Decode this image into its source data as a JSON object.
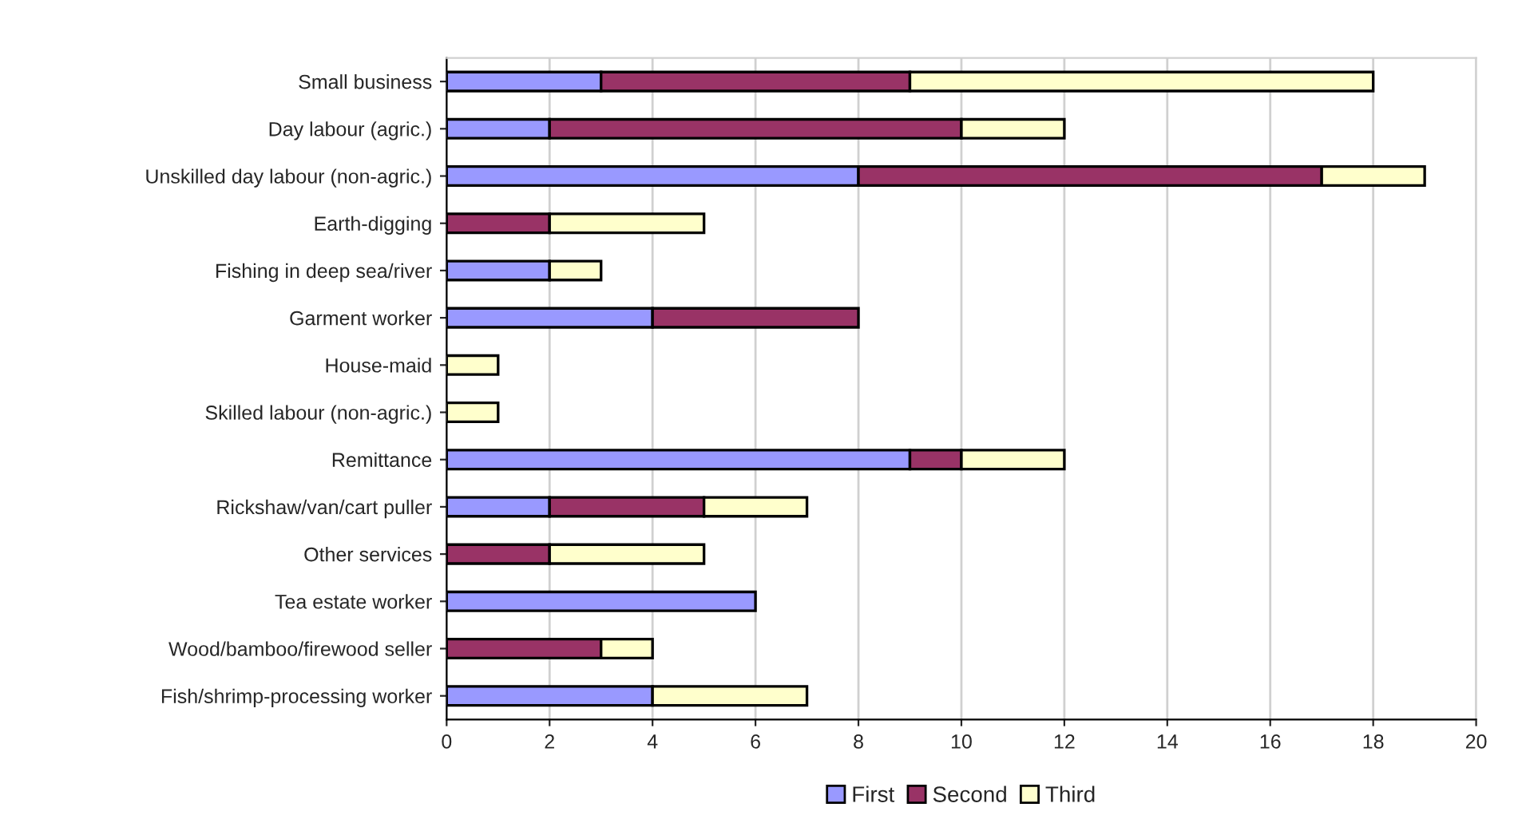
{
  "chart_data": {
    "type": "bar",
    "orientation": "horizontal",
    "stacked": true,
    "categories": [
      "Small business",
      "Day labour (agric.)",
      "Unskilled day labour (non-agric.)",
      "Earth-digging",
      "Fishing in deep sea/river",
      "Garment worker",
      "House-maid",
      "Skilled labour (non-agric.)",
      "Remittance",
      "Rickshaw/van/cart puller",
      "Other services",
      "Tea estate worker",
      "Wood/bamboo/firewood seller",
      "Fish/shrimp-processing worker"
    ],
    "series": [
      {
        "name": "First",
        "color": "#9999ff",
        "values": [
          3,
          2,
          8,
          null,
          2,
          4,
          null,
          null,
          9,
          2,
          null,
          6,
          null,
          4
        ]
      },
      {
        "name": "Second",
        "color": "#993366",
        "values": [
          6,
          8,
          9,
          2,
          null,
          4,
          null,
          null,
          1,
          3,
          2,
          null,
          3,
          null
        ]
      },
      {
        "name": "Third",
        "color": "#ffffcc",
        "values": [
          9,
          2,
          2,
          3,
          1,
          null,
          1,
          1,
          2,
          2,
          3,
          null,
          1,
          3
        ]
      }
    ],
    "xlim": [
      0,
      20
    ],
    "xticks": [
      0,
      2,
      4,
      6,
      8,
      10,
      12,
      14,
      16,
      18,
      20
    ],
    "grid": "x",
    "legend": "bottom"
  }
}
